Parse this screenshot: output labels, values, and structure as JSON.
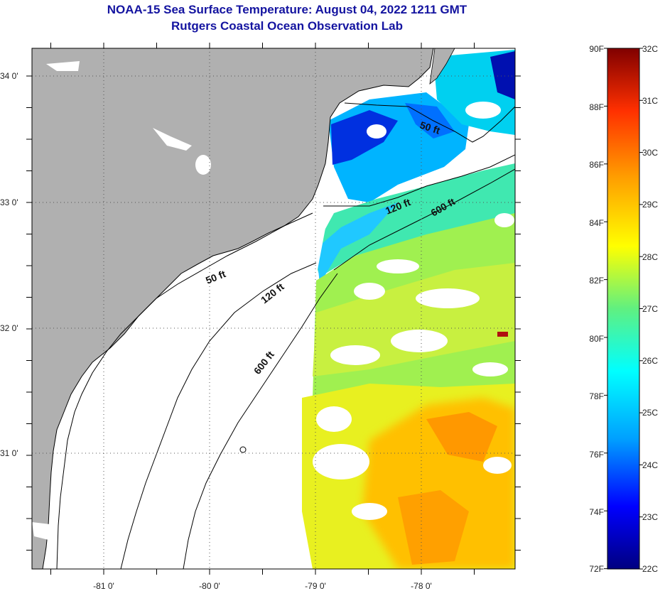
{
  "title": "NOAA-15 Sea Surface Temperature:  August 04, 2022 1211 GMT",
  "subtitle": "Rutgers Coastal Ocean Observation Lab",
  "lat_labels": [
    "34 0'",
    "33 0'",
    "32 0'",
    "31 0'"
  ],
  "lon_labels": [
    "-81 0'",
    "-80 0'",
    "-79 0'",
    "-78 0'"
  ],
  "contour_labels": [
    "50 ft",
    "120 ft",
    "600 ft",
    "50 ft",
    "120 ft",
    "600 ft"
  ],
  "colorbar": {
    "fahrenheit": [
      "90F",
      "88F",
      "86F",
      "84F",
      "82F",
      "80F",
      "78F",
      "76F",
      "74F",
      "72F"
    ],
    "celsius": [
      "32C",
      "31C",
      "30C",
      "29C",
      "28C",
      "27C",
      "26C",
      "25C",
      "24C",
      "23C",
      "22C"
    ],
    "range_c": [
      22,
      32
    ],
    "stops": [
      "#000080",
      "#0000ff",
      "#00a0ff",
      "#00ffff",
      "#60f080",
      "#ffff00",
      "#ffa000",
      "#ff3000",
      "#800000"
    ]
  },
  "colors": {
    "land": "#b0b0b0",
    "nodata": "#ffffff",
    "title": "#1414a0"
  }
}
